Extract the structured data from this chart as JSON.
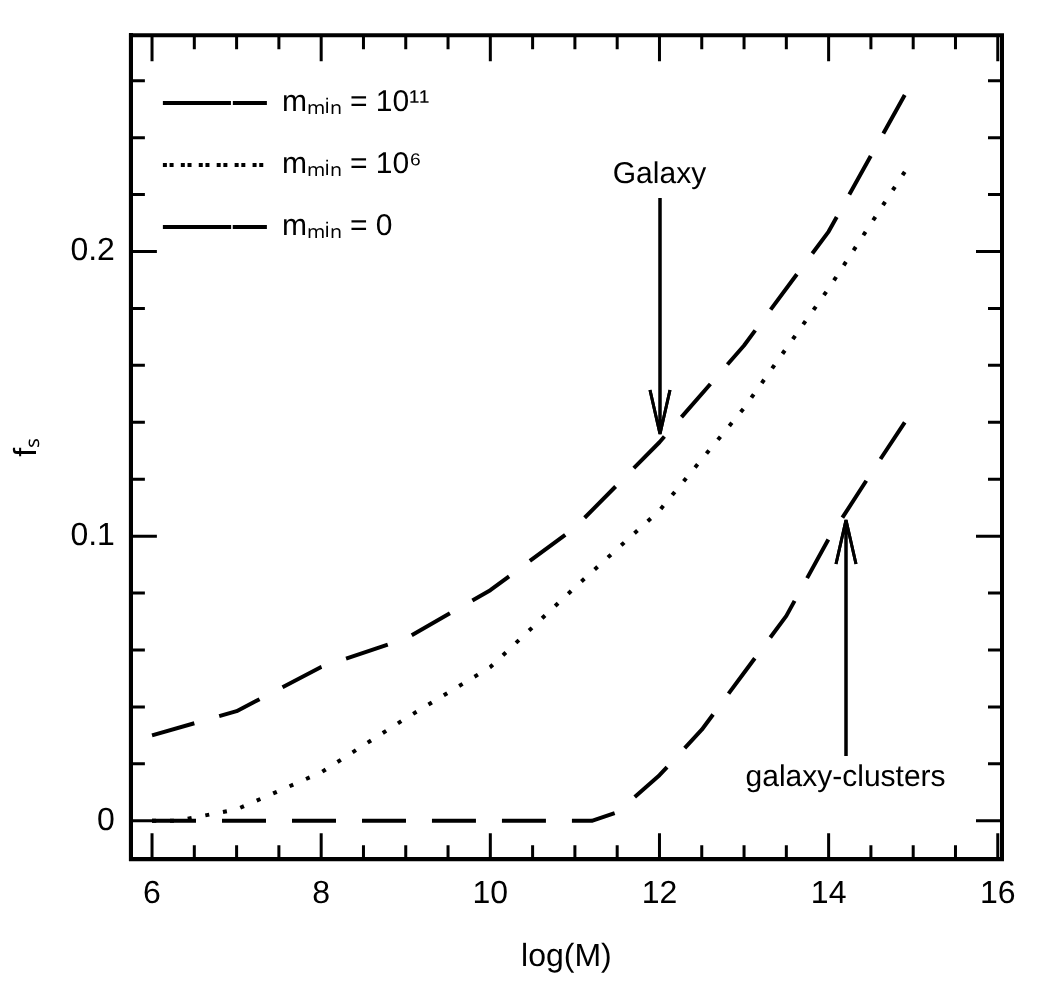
{
  "chart_data": {
    "type": "line",
    "xlabel": "log(M)",
    "ylabel": "fₛ",
    "xlim": [
      5.75,
      16.05
    ],
    "ylim": [
      -0.0135,
      0.276
    ],
    "xticks": [
      6,
      {
        "value": 6.5,
        "label": null
      },
      {
        "value": 7,
        "label": null
      },
      {
        "value": 7.5,
        "label": null
      },
      8,
      {
        "value": 8.5,
        "label": null
      },
      {
        "value": 9,
        "label": null
      },
      {
        "value": 9.5,
        "label": null
      },
      10,
      {
        "value": 10.5,
        "label": null
      },
      {
        "value": 11,
        "label": null
      },
      {
        "value": 11.5,
        "label": null
      },
      12,
      {
        "value": 12.5,
        "label": null
      },
      {
        "value": 13,
        "label": null
      },
      {
        "value": 13.5,
        "label": null
      },
      14,
      {
        "value": 14.5,
        "label": null
      },
      {
        "value": 15,
        "label": null
      },
      {
        "value": 15.5,
        "label": null
      },
      16
    ],
    "yticks": [
      0,
      {
        "value": 0.02,
        "label": null
      },
      {
        "value": 0.04,
        "label": null
      },
      {
        "value": 0.06,
        "label": null
      },
      {
        "value": 0.08,
        "label": null
      },
      0.1,
      {
        "value": 0.12,
        "label": null
      },
      {
        "value": 0.14,
        "label": null
      },
      {
        "value": 0.16,
        "label": null
      },
      {
        "value": 0.18,
        "label": null
      },
      0.2,
      {
        "value": 0.22,
        "label": null
      },
      {
        "value": 0.24,
        "label": null
      },
      {
        "value": 0.26,
        "label": null
      }
    ],
    "legend": "top left",
    "grid": false,
    "marker": "none",
    "series": [
      {
        "name": "mₘᵢₙ = 10¹¹",
        "color": "#000000",
        "line_style": "dashed",
        "x": [
          6,
          7,
          8,
          9,
          10,
          11,
          11.2,
          11.5,
          12,
          12.5,
          13,
          13.5,
          14,
          14.5,
          14.9
        ],
        "values": [
          0,
          0,
          0,
          0,
          0,
          0,
          0,
          0.003,
          0.016,
          0.032,
          0.052,
          0.072,
          0.099,
          0.122,
          0.14
        ]
      },
      {
        "name": "mₘᵢₙ = 10⁶",
        "color": "#000000",
        "line_style": "dotted",
        "x": [
          6,
          6.3,
          7,
          8,
          9,
          10,
          11,
          12,
          13,
          14,
          14.9
        ],
        "values": [
          0,
          0,
          0.004,
          0.017,
          0.036,
          0.054,
          0.082,
          0.109,
          0.145,
          0.187,
          0.228
        ]
      },
      {
        "name": "mₘᵢₙ = 0",
        "color": "#000000",
        "line_style": "dashed",
        "x": [
          6,
          7,
          8,
          9,
          10,
          11,
          12,
          13,
          14,
          14.9
        ],
        "values": [
          0.03,
          0.0385,
          0.054,
          0.064,
          0.081,
          0.103,
          0.133,
          0.167,
          0.207,
          0.255
        ]
      }
    ],
    "annotations": [
      {
        "text": "Galaxy",
        "x": 12,
        "y": 0.136
      },
      {
        "text": "galaxy-clusters",
        "x": 14.2,
        "y": 0.106
      }
    ]
  }
}
